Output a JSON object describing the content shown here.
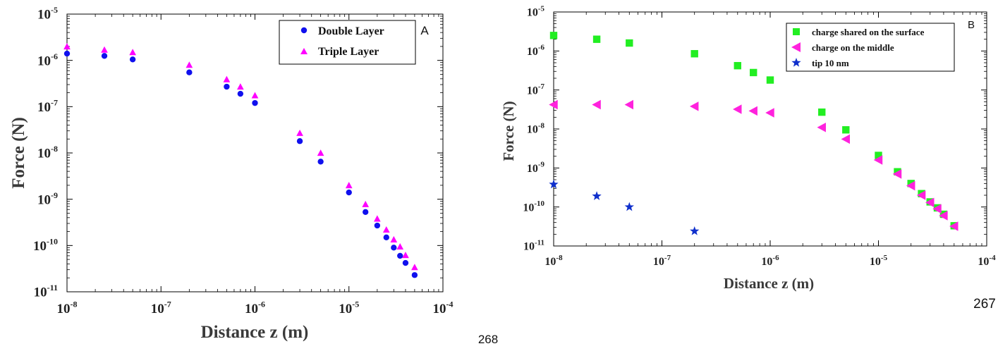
{
  "chart_data": [
    {
      "type": "scatter",
      "panel_label": "A",
      "xlabel": "Distance z (m)",
      "ylabel": "Force (N)",
      "x_scale": "log",
      "y_scale": "log",
      "xlim": [
        1e-08,
        0.0001
      ],
      "ylim": [
        1e-11,
        1e-05
      ],
      "x_ticks": [
        {
          "value": 1e-08,
          "base": "10",
          "exp": "-8"
        },
        {
          "value": 1e-07,
          "base": "10",
          "exp": "-7"
        },
        {
          "value": 1e-06,
          "base": "10",
          "exp": "-6"
        },
        {
          "value": 1e-05,
          "base": "10",
          "exp": "-5"
        },
        {
          "value": 0.0001,
          "base": "10",
          "exp": "-4"
        }
      ],
      "y_ticks": [
        {
          "value": 1e-11,
          "base": "10",
          "exp": "-11"
        },
        {
          "value": 1e-10,
          "base": "10",
          "exp": "-10"
        },
        {
          "value": 1e-09,
          "base": "10",
          "exp": "-9"
        },
        {
          "value": 1e-08,
          "base": "10",
          "exp": "-8"
        },
        {
          "value": 1e-07,
          "base": "10",
          "exp": "-7"
        },
        {
          "value": 1e-06,
          "base": "10",
          "exp": "-6"
        },
        {
          "value": 1e-05,
          "base": "10",
          "exp": "-5"
        }
      ],
      "grid": false,
      "legend_position": "top-right",
      "series": [
        {
          "name": "Double Layer",
          "marker": "circle",
          "color": "#1010ee",
          "x": [
            1e-08,
            2.5e-08,
            5e-08,
            2e-07,
            5e-07,
            7e-07,
            1e-06,
            3e-06,
            5e-06,
            1e-05,
            1.5e-05,
            2e-05,
            2.5e-05,
            3e-05,
            3.5e-05,
            4e-05,
            5e-05
          ],
          "y": [
            1.4e-06,
            1.25e-06,
            1.05e-06,
            5.5e-07,
            2.7e-07,
            1.9e-07,
            1.2e-07,
            1.8e-08,
            6.5e-09,
            1.4e-09,
            5.3e-10,
            2.7e-10,
            1.5e-10,
            9e-11,
            6e-11,
            4.2e-11,
            2.3e-11
          ]
        },
        {
          "name": "Triple Layer",
          "marker": "triangle",
          "color": "#ff00ff",
          "x": [
            1e-08,
            2.5e-08,
            5e-08,
            2e-07,
            5e-07,
            7e-07,
            1e-06,
            3e-06,
            5e-06,
            1e-05,
            1.5e-05,
            2e-05,
            2.5e-05,
            3e-05,
            3.5e-05,
            4e-05,
            5e-05
          ],
          "y": [
            2e-06,
            1.7e-06,
            1.5e-06,
            8e-07,
            3.9e-07,
            2.7e-07,
            1.75e-07,
            2.7e-08,
            1e-08,
            2e-09,
            7.8e-10,
            3.8e-10,
            2.2e-10,
            1.35e-10,
            9.5e-11,
            6.2e-11,
            3.4e-11
          ]
        }
      ]
    },
    {
      "type": "scatter",
      "panel_label": "B",
      "xlabel": "Distance z (m)",
      "ylabel": "Force (N)",
      "x_scale": "log",
      "y_scale": "log",
      "xlim": [
        1e-08,
        0.0001
      ],
      "ylim": [
        1e-11,
        1e-05
      ],
      "x_ticks": [
        {
          "value": 1e-08,
          "base": "10",
          "exp": "-8"
        },
        {
          "value": 1e-07,
          "base": "10",
          "exp": "-7"
        },
        {
          "value": 1e-06,
          "base": "10",
          "exp": "-6"
        },
        {
          "value": 1e-05,
          "base": "10",
          "exp": "-5"
        },
        {
          "value": 0.0001,
          "base": "10",
          "exp": "-4"
        }
      ],
      "y_ticks": [
        {
          "value": 1e-11,
          "base": "10",
          "exp": "-11"
        },
        {
          "value": 1e-10,
          "base": "10",
          "exp": "-10"
        },
        {
          "value": 1e-09,
          "base": "10",
          "exp": "-9"
        },
        {
          "value": 1e-08,
          "base": "10",
          "exp": "-8"
        },
        {
          "value": 1e-07,
          "base": "10",
          "exp": "-7"
        },
        {
          "value": 1e-06,
          "base": "10",
          "exp": "-6"
        },
        {
          "value": 1e-05,
          "base": "10",
          "exp": "-5"
        }
      ],
      "grid": false,
      "legend_position": "top-right",
      "series": [
        {
          "name": "charge shared on the surface",
          "marker": "square",
          "color": "#22ee22",
          "x": [
            1e-08,
            2.5e-08,
            5e-08,
            2e-07,
            5e-07,
            7e-07,
            1e-06,
            3e-06,
            5e-06,
            1e-05,
            1.5e-05,
            2e-05,
            2.5e-05,
            3e-05,
            3.5e-05,
            4e-05,
            5e-05
          ],
          "y": [
            2.5e-06,
            2e-06,
            1.6e-06,
            8.5e-07,
            4.2e-07,
            2.8e-07,
            1.8e-07,
            2.7e-08,
            9.5e-09,
            2.1e-09,
            8e-10,
            4e-10,
            2.2e-10,
            1.35e-10,
            9.5e-11,
            6.5e-11,
            3.3e-11
          ]
        },
        {
          "name": "charge on the middle",
          "marker": "triangle-left",
          "color": "#ff22dd",
          "x": [
            1e-08,
            2.5e-08,
            5e-08,
            2e-07,
            5e-07,
            7e-07,
            1e-06,
            3e-06,
            5e-06,
            1e-05,
            1.5e-05,
            2e-05,
            2.5e-05,
            3e-05,
            3.5e-05,
            4e-05,
            5e-05
          ],
          "y": [
            4.2e-08,
            4.2e-08,
            4.2e-08,
            3.8e-08,
            3.2e-08,
            2.9e-08,
            2.6e-08,
            1.1e-08,
            5.5e-09,
            1.6e-09,
            7e-10,
            3.5e-10,
            2e-10,
            1.3e-10,
            9e-11,
            6e-11,
            3.2e-11
          ]
        },
        {
          "name": "tip 10 nm",
          "marker": "star",
          "color": "#1030cc",
          "x": [
            1e-08,
            2.5e-08,
            5e-08,
            2e-07
          ],
          "y": [
            3.8e-10,
            1.9e-10,
            1e-10,
            2.4e-11
          ]
        }
      ]
    }
  ],
  "page_numbers": {
    "left": "268",
    "right": "267"
  }
}
